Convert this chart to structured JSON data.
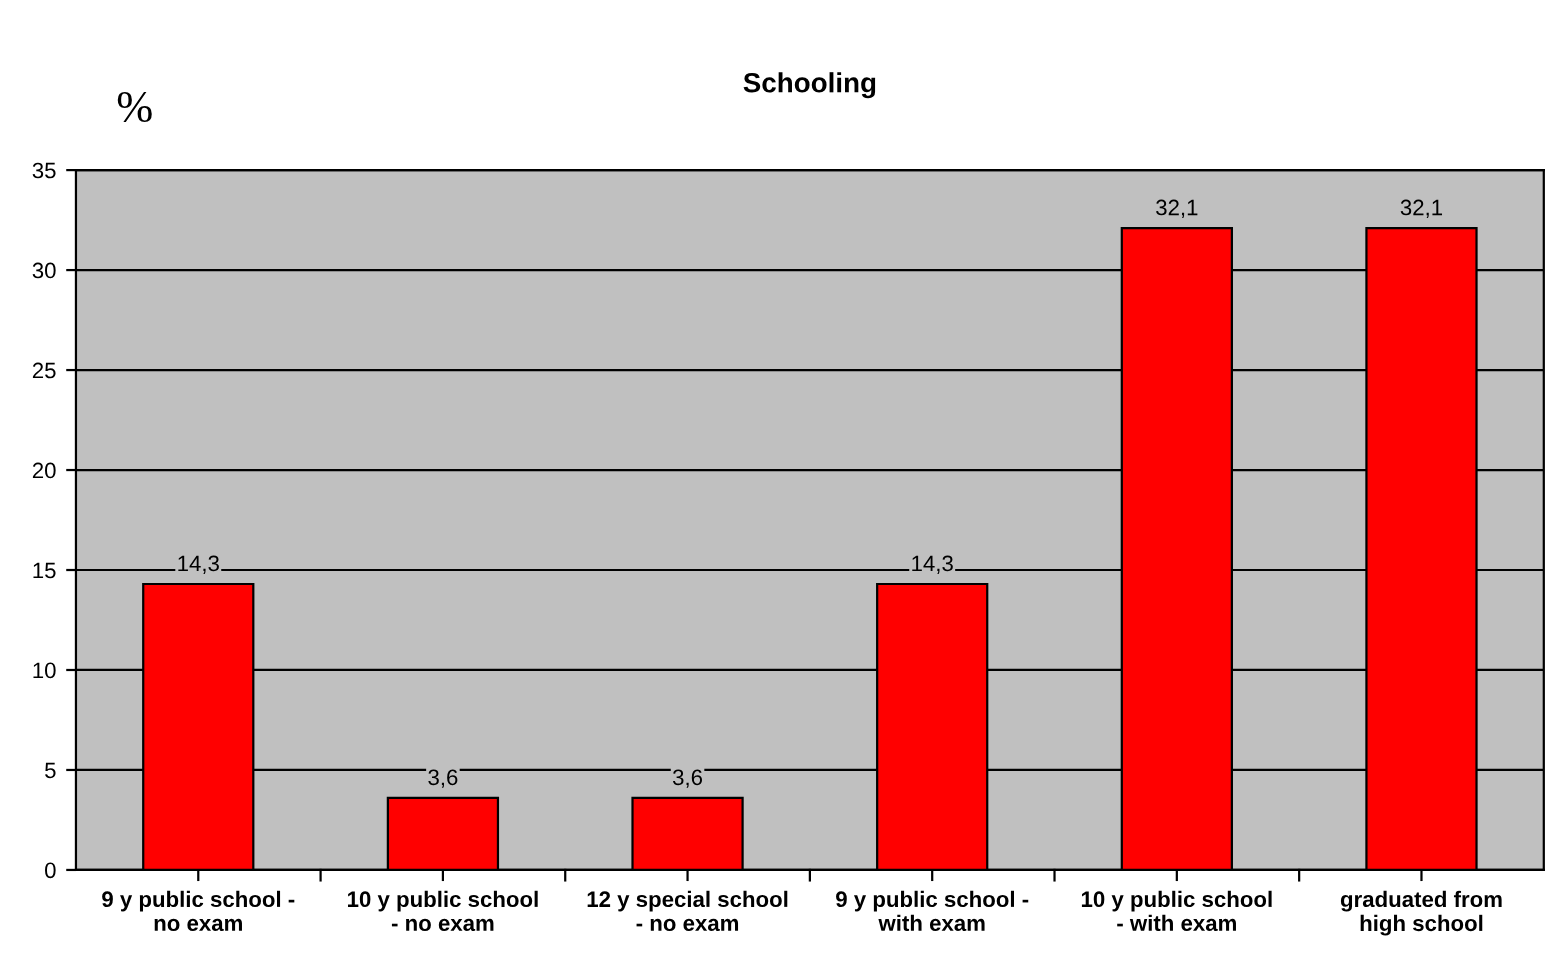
{
  "chart_data": {
    "type": "bar",
    "title": "Schooling",
    "ylabel": "%",
    "categories": [
      "9 y public school -\nno exam",
      "10 y public school\n- no exam",
      "12 y special school\n- no exam",
      "9 y public school -\nwith exam",
      "10 y public school\n- with exam",
      "graduated from\nhigh school"
    ],
    "values": [
      14.3,
      3.6,
      3.6,
      14.3,
      32.1,
      32.1
    ],
    "value_labels": [
      "14,3",
      "3,6",
      "3,6",
      "14,3",
      "32,1",
      "32,1"
    ],
    "color": "#ff0000",
    "ylim": [
      0,
      35
    ],
    "yticks": [
      0,
      5,
      10,
      15,
      20,
      25,
      30,
      35
    ],
    "grid": "y",
    "legend": false
  }
}
